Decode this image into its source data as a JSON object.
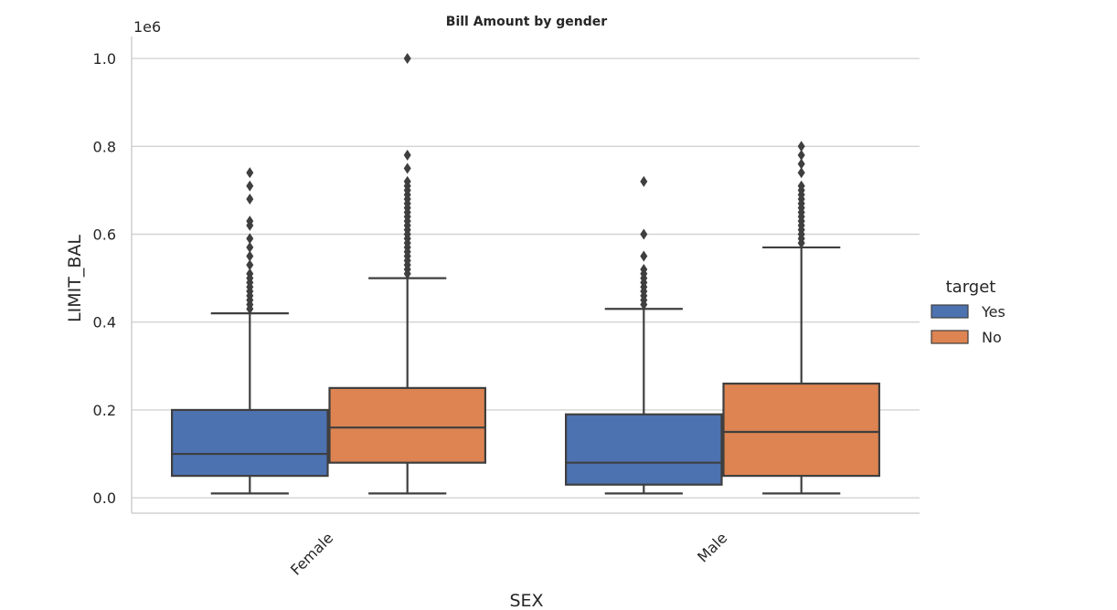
{
  "chart_data": {
    "type": "box",
    "title": "Bill Amount by gender",
    "xlabel": "SEX",
    "ylabel": "LIMIT_BAL",
    "y_offset_label": "1e6",
    "ylim": [
      -0.035,
      1.05
    ],
    "y_scale_factor": 1000000,
    "yticks": [
      0.0,
      0.2,
      0.4,
      0.6,
      0.8,
      1.0
    ],
    "ytick_labels": [
      "0.0",
      "0.2",
      "0.4",
      "0.6",
      "0.8",
      "1.0"
    ],
    "grid": true,
    "categories": [
      "Female",
      "Male"
    ],
    "legend": {
      "title": "target",
      "position": "right"
    },
    "series": [
      {
        "name": "Yes",
        "color": "#4c72b0",
        "boxes": [
          {
            "category": "Female",
            "whisker_low": 0.01,
            "q1": 0.05,
            "median": 0.1,
            "q3": 0.2,
            "whisker_high": 0.42,
            "outliers": [
              0.74,
              0.71,
              0.68,
              0.63,
              0.62,
              0.59,
              0.57,
              0.55,
              0.53,
              0.51,
              0.5,
              0.49,
              0.48,
              0.47,
              0.46,
              0.45,
              0.44,
              0.43
            ]
          },
          {
            "category": "Male",
            "whisker_low": 0.01,
            "q1": 0.03,
            "median": 0.08,
            "q3": 0.19,
            "whisker_high": 0.43,
            "outliers": [
              0.72,
              0.6,
              0.55,
              0.52,
              0.51,
              0.5,
              0.49,
              0.48,
              0.47,
              0.46,
              0.45,
              0.44
            ]
          }
        ]
      },
      {
        "name": "No",
        "color": "#dd8452",
        "boxes": [
          {
            "category": "Female",
            "whisker_low": 0.01,
            "q1": 0.08,
            "median": 0.16,
            "q3": 0.25,
            "whisker_high": 0.5,
            "outliers": [
              1.0,
              0.78,
              0.75,
              0.72,
              0.71,
              0.7,
              0.69,
              0.68,
              0.67,
              0.66,
              0.65,
              0.64,
              0.63,
              0.62,
              0.61,
              0.6,
              0.59,
              0.58,
              0.57,
              0.56,
              0.55,
              0.54,
              0.53,
              0.52,
              0.51
            ]
          },
          {
            "category": "Male",
            "whisker_low": 0.01,
            "q1": 0.05,
            "median": 0.15,
            "q3": 0.26,
            "whisker_high": 0.57,
            "outliers": [
              0.8,
              0.78,
              0.76,
              0.74,
              0.71,
              0.7,
              0.69,
              0.68,
              0.67,
              0.66,
              0.65,
              0.64,
              0.63,
              0.62,
              0.61,
              0.6,
              0.59,
              0.58
            ]
          }
        ]
      }
    ]
  }
}
